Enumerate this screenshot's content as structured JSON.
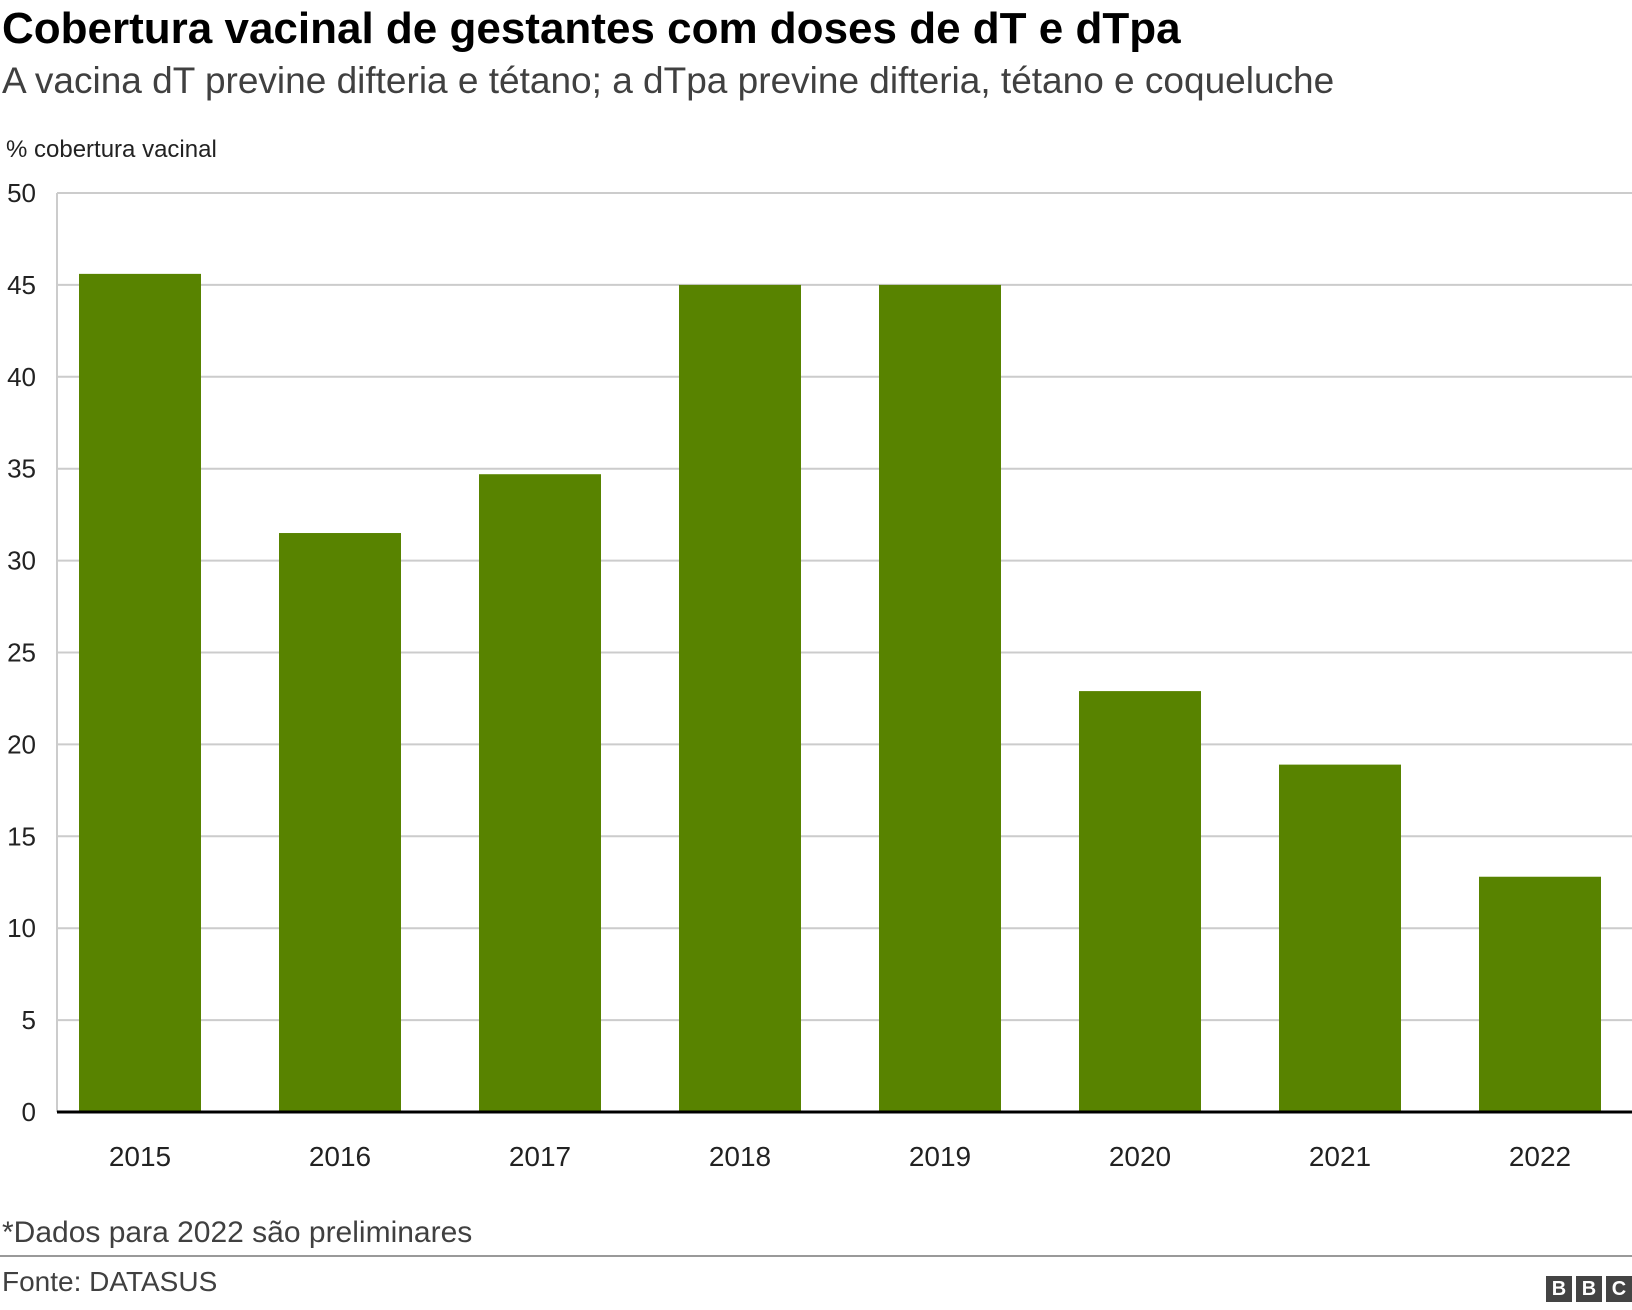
{
  "chart_data": {
    "type": "bar",
    "title": "Cobertura vacinal de gestantes com doses de dT e dTpa",
    "subtitle": "A vacina dT previne difteria e tétano; a dTpa previne difteria, tétano e coqueluche",
    "ylabel": "% cobertura vacinal",
    "xlabel": "",
    "categories": [
      "2015",
      "2016",
      "2017",
      "2018",
      "2019",
      "2020",
      "2021",
      "2022"
    ],
    "values": [
      45.6,
      31.5,
      34.7,
      45.0,
      45.0,
      22.9,
      18.9,
      12.8
    ],
    "ylim": [
      0,
      50
    ],
    "yticks": [
      "0",
      "5",
      "10",
      "15",
      "20",
      "25",
      "30",
      "35",
      "40",
      "45",
      "50"
    ],
    "grid": true,
    "bar_color": "#588300",
    "note": "*Dados para 2022 são preliminares",
    "source": "Fonte: DATASUS"
  },
  "logo": {
    "letters": [
      "B",
      "B",
      "C"
    ]
  }
}
